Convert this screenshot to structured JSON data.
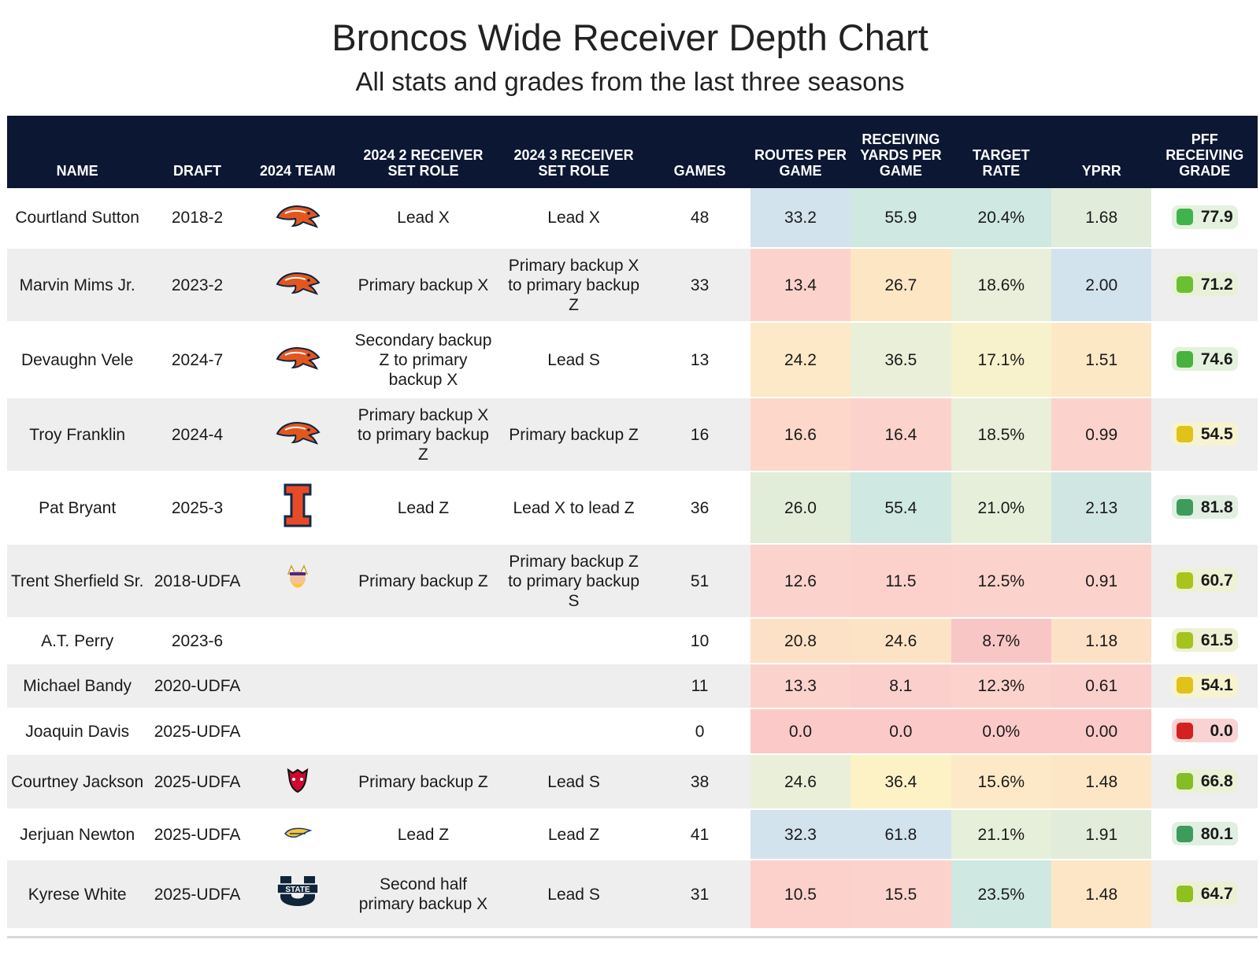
{
  "chart_data": {
    "type": "table",
    "title": "Broncos Wide Receiver Depth Chart",
    "subtitle": "All stats and grades from the last three seasons",
    "columns": [
      "NAME",
      "DRAFT",
      "2024 TEAM",
      "2024 2 RECEIVER SET ROLE",
      "2024 3 RECEIVER SET ROLE",
      "GAMES",
      "ROUTES PER GAME",
      "RECEIVING YARDS PER GAME",
      "TARGET RATE",
      "YPRR",
      "PFF RECEIVING GRADE"
    ],
    "rows": [
      {
        "name": "Courtland Sutton",
        "draft": "2018-2",
        "team_logo": "broncos-logo",
        "role2": "Lead X",
        "role3": "Lead X",
        "games": "48",
        "routes": "33.2",
        "yards": "55.9",
        "target": "20.4%",
        "yprr": "1.68",
        "grade": "77.9",
        "colors": {
          "routes": "#d3e3ee",
          "yards": "#cfe8e1",
          "target": "#cfe8e1",
          "yprr": "#e2ecdb",
          "grade": "#3db54a",
          "grade_bg": "#e4f1de"
        }
      },
      {
        "name": "Marvin Mims Jr.",
        "draft": "2023-2",
        "team_logo": "broncos-logo",
        "role2": "Primary backup X",
        "role3": "Primary backup X to primary backup Z",
        "games": "33",
        "routes": "13.4",
        "yards": "26.7",
        "target": "18.6%",
        "yprr": "2.00",
        "grade": "71.2",
        "colors": {
          "routes": "#fcd3cc",
          "yards": "#fde6c4",
          "target": "#e9efda",
          "yprr": "#d3e3ee",
          "grade": "#6cbf32",
          "grade_bg": "#e8f1d8"
        }
      },
      {
        "name": "Devaughn Vele",
        "draft": "2024-7",
        "team_logo": "broncos-logo",
        "role2": "Secondary backup Z to primary backup X",
        "role3": "Lead S",
        "games": "13",
        "routes": "24.2",
        "yards": "36.5",
        "target": "17.1%",
        "yprr": "1.51",
        "grade": "74.6",
        "colors": {
          "routes": "#fde9c7",
          "yards": "#eaefd9",
          "target": "#f7f1cc",
          "yprr": "#fde8c6",
          "grade": "#46b43c",
          "grade_bg": "#e4f1de"
        }
      },
      {
        "name": "Troy Franklin",
        "draft": "2024-4",
        "team_logo": "broncos-logo",
        "role2": "Primary backup X to primary backup Z",
        "role3": "Primary backup Z",
        "games": "16",
        "routes": "16.6",
        "yards": "16.4",
        "target": "18.5%",
        "yprr": "0.99",
        "grade": "54.5",
        "colors": {
          "routes": "#fdd8ca",
          "yards": "#fcd3cc",
          "target": "#e9efda",
          "yprr": "#fcd3cc",
          "grade": "#e0c21a",
          "grade_bg": "#f7f3d1"
        }
      },
      {
        "name": "Pat Bryant",
        "draft": "2025-3",
        "team_logo": "illinois-logo",
        "role2": "Lead Z",
        "role3": "Lead X to lead Z",
        "games": "36",
        "routes": "26.0",
        "yards": "55.4",
        "target": "21.0%",
        "yprr": "2.13",
        "grade": "81.8",
        "colors": {
          "routes": "#e1edd9",
          "yards": "#cfe8e1",
          "target": "#e6efda",
          "yprr": "#d0e6e3",
          "grade": "#3e9b5c",
          "grade_bg": "#e1efe2"
        }
      },
      {
        "name": "Trent Sherfield Sr.",
        "draft": "2018-UDFA",
        "team_logo": "vikings-logo",
        "role2": "Primary backup Z",
        "role3": "Primary backup Z to primary backup S",
        "games": "51",
        "routes": "12.6",
        "yards": "11.5",
        "target": "12.5%",
        "yprr": "0.91",
        "grade": "60.7",
        "colors": {
          "routes": "#fcd3cc",
          "yards": "#fcd1cc",
          "target": "#fcd3cc",
          "yprr": "#fcd3cc",
          "grade": "#a9c41c",
          "grade_bg": "#eef1d4"
        }
      },
      {
        "name": "A.T. Perry",
        "draft": "2023-6",
        "team_logo": "",
        "role2": "",
        "role3": "",
        "games": "10",
        "routes": "20.8",
        "yards": "24.6",
        "target": "8.7%",
        "yprr": "1.18",
        "grade": "61.5",
        "colors": {
          "routes": "#fde1c6",
          "yards": "#fde3c5",
          "target": "#f9c6c6",
          "yprr": "#fde1c6",
          "grade": "#a4c41c",
          "grade_bg": "#eef1d4"
        }
      },
      {
        "name": "Michael Bandy",
        "draft": "2020-UDFA",
        "team_logo": "",
        "role2": "",
        "role3": "",
        "games": "11",
        "routes": "13.3",
        "yards": "8.1",
        "target": "12.3%",
        "yprr": "0.61",
        "grade": "54.1",
        "colors": {
          "routes": "#fcd3cc",
          "yards": "#fbcfcc",
          "target": "#fcd3cc",
          "yprr": "#fbcfcc",
          "grade": "#e0c21a",
          "grade_bg": "#f7f3d1"
        }
      },
      {
        "name": "Joaquin Davis",
        "draft": "2025-UDFA",
        "team_logo": "",
        "role2": "",
        "role3": "",
        "games": "0",
        "routes": "0.0",
        "yards": "0.0",
        "target": "0.0%",
        "yprr": "0.00",
        "grade": "0.0",
        "colors": {
          "routes": "#fcc9c9",
          "yards": "#fcc9c9",
          "target": "#fcc9c9",
          "yprr": "#fcc9c9",
          "grade": "#d42020",
          "grade_bg": "#f9d3d3"
        }
      },
      {
        "name": "Courtney Jackson",
        "draft": "2025-UDFA",
        "team_logo": "arkansas-state-logo",
        "role2": "Primary backup Z",
        "role3": "Lead S",
        "games": "38",
        "routes": "24.6",
        "yards": "36.4",
        "target": "15.6%",
        "yprr": "1.48",
        "grade": "66.8",
        "colors": {
          "routes": "#eaefd9",
          "yards": "#fdf2c6",
          "target": "#fde9c7",
          "yprr": "#fde6c6",
          "grade": "#84bd26",
          "grade_bg": "#eaf1d6"
        }
      },
      {
        "name": "Jerjuan Newton",
        "draft": "2025-UDFA",
        "team_logo": "toledo-logo",
        "role2": "Lead Z",
        "role3": "Lead Z",
        "games": "41",
        "routes": "32.3",
        "yards": "61.8",
        "target": "21.1%",
        "yprr": "1.91",
        "grade": "80.1",
        "colors": {
          "routes": "#d3e3ee",
          "yards": "#d3e3ee",
          "target": "#e6efda",
          "yprr": "#e2ecdb",
          "grade": "#3e9b5c",
          "grade_bg": "#e1efe2"
        }
      },
      {
        "name": "Kyrese White",
        "draft": "2025-UDFA",
        "team_logo": "utah-state-logo",
        "role2": "Second half primary backup X",
        "role3": "Lead S",
        "games": "31",
        "routes": "10.5",
        "yards": "15.5",
        "target": "23.5%",
        "yprr": "1.48",
        "grade": "64.7",
        "colors": {
          "routes": "#fcd1cc",
          "yards": "#fcd3cc",
          "target": "#cfe8e1",
          "yprr": "#fde6c6",
          "grade": "#90bf22",
          "grade_bg": "#ecf1d6"
        }
      }
    ]
  }
}
